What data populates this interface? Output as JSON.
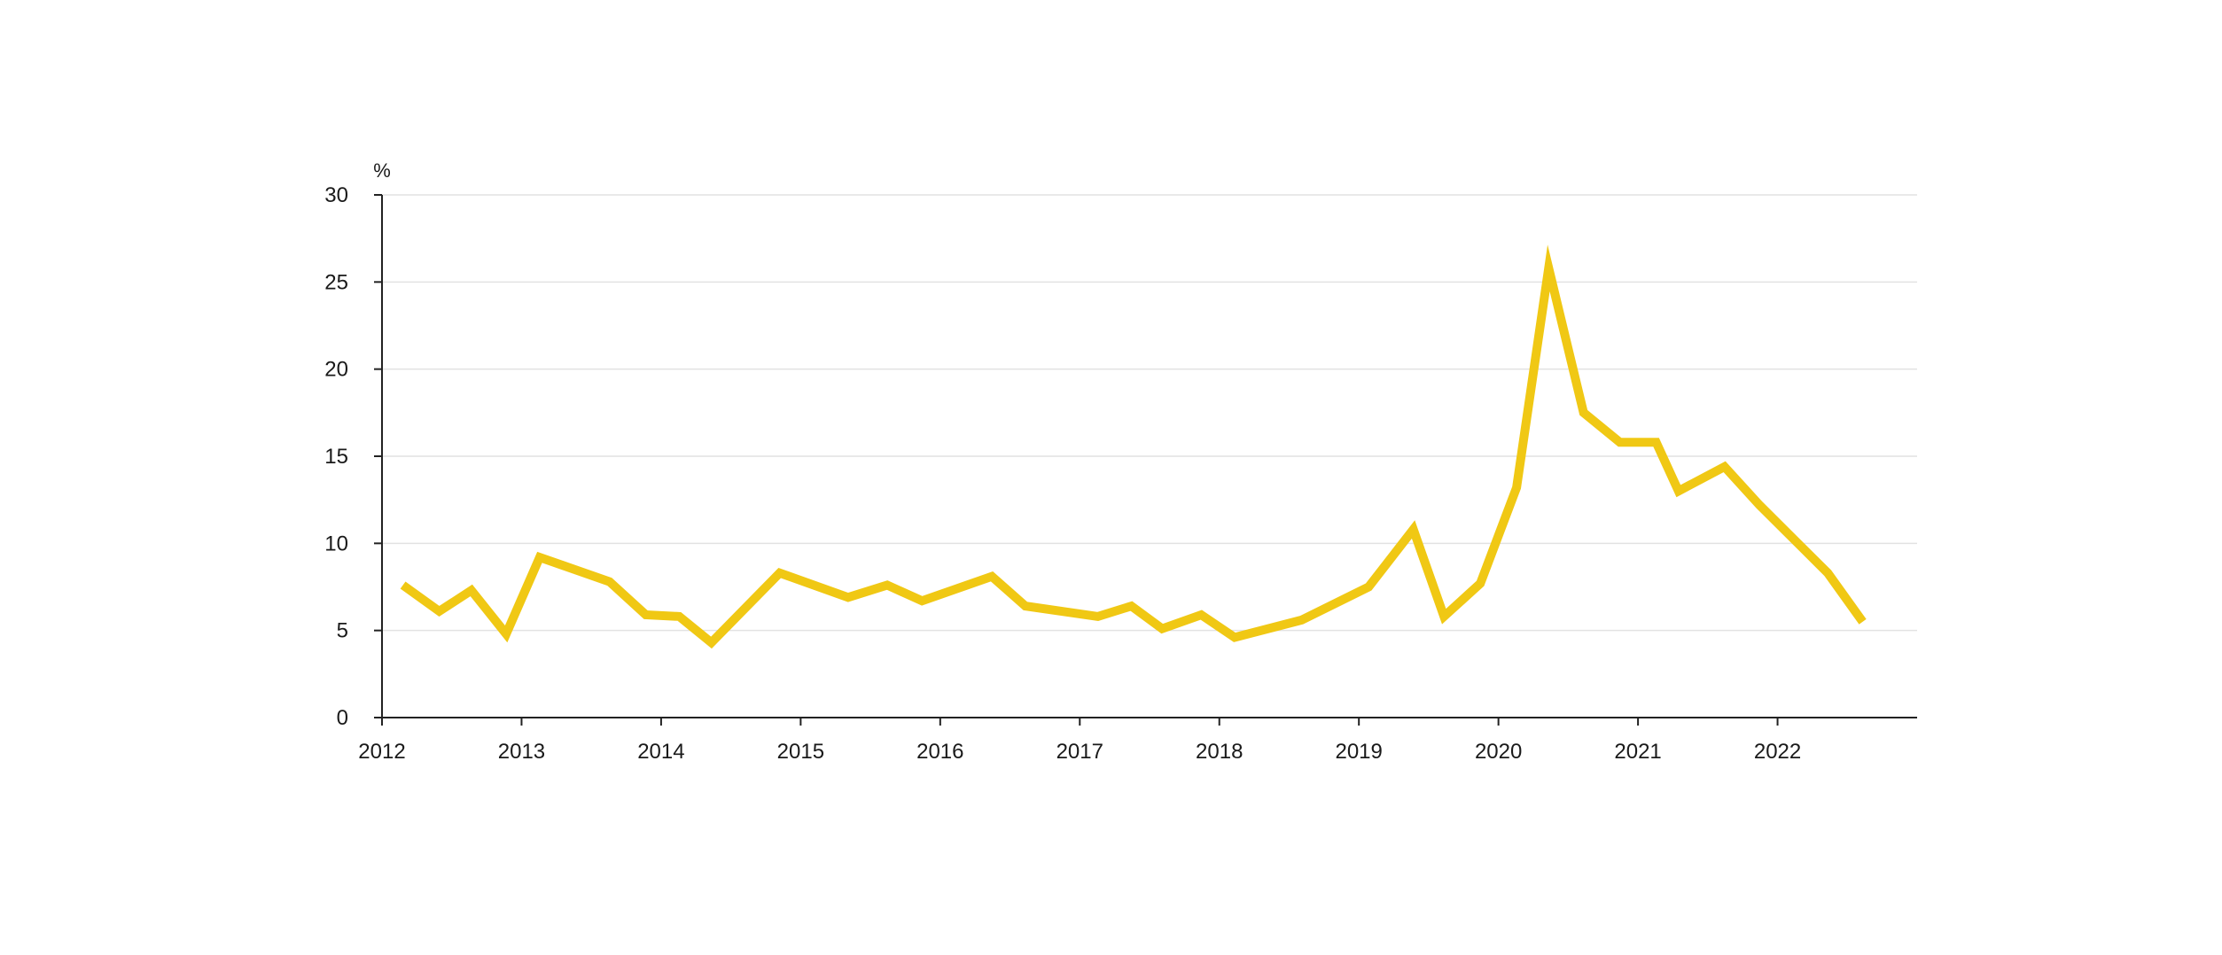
{
  "chart_data": {
    "type": "line",
    "title": "",
    "xlabel": "",
    "ylabel": "%",
    "ylim": [
      0,
      30
    ],
    "xlim": [
      2012.0,
      2023.0
    ],
    "y_ticks": [
      0,
      5,
      10,
      15,
      20,
      25,
      30
    ],
    "x_ticks": [
      2012,
      2013,
      2014,
      2015,
      2016,
      2017,
      2018,
      2019,
      2020,
      2021,
      2022
    ],
    "grid": "horizontal",
    "colors": {
      "line": "#F0C814",
      "grid": "#E2E2E2",
      "axis": "#222222",
      "text": "#1a1a1a"
    },
    "series": [
      {
        "x": [
          2012.15,
          2012.41,
          2012.64,
          2012.89,
          2013.13,
          2013.63,
          2013.89,
          2014.13,
          2014.36,
          2014.85,
          2015.34,
          2015.62,
          2015.87,
          2016.37,
          2016.61,
          2017.13,
          2017.37,
          2017.59,
          2017.87,
          2018.11,
          2018.59,
          2019.07,
          2019.39,
          2019.61,
          2019.87,
          2020.13,
          2020.36,
          2020.61,
          2020.87,
          2021.13,
          2021.29,
          2021.62,
          2021.87,
          2022.36,
          2022.61
        ],
        "values": [
          7.6,
          6.1,
          7.3,
          4.8,
          9.2,
          7.8,
          5.9,
          5.8,
          4.3,
          8.3,
          6.9,
          7.6,
          6.7,
          8.1,
          6.4,
          5.8,
          6.4,
          5.1,
          5.9,
          4.6,
          5.6,
          7.5,
          10.8,
          5.8,
          7.7,
          13.2,
          25.8,
          17.5,
          15.8,
          15.8,
          13.0,
          14.4,
          12.2,
          8.3,
          5.5
        ]
      }
    ]
  }
}
